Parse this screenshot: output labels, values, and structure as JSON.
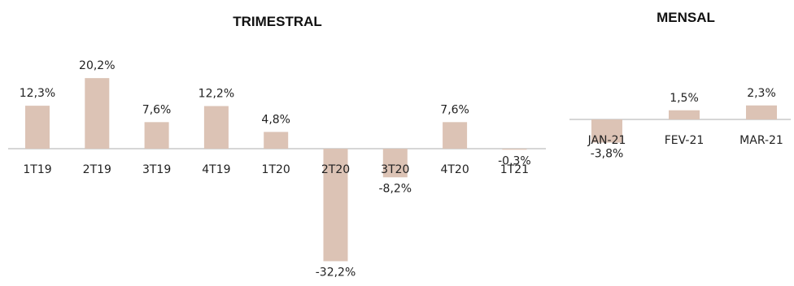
{
  "chart_data": [
    {
      "type": "bar",
      "title": "TRIMESTRAL",
      "categories": [
        "1T19",
        "2T19",
        "3T19",
        "4T19",
        "1T20",
        "2T20",
        "3T20",
        "4T20",
        "1T21"
      ],
      "values": [
        12.3,
        20.2,
        7.6,
        12.2,
        4.8,
        -32.2,
        -8.2,
        7.6,
        -0.3
      ],
      "data_labels": [
        "12,3%",
        "20,2%",
        "7,6%",
        "12,2%",
        "4,8%",
        "-32,2%",
        "-8,2%",
        "7,6%",
        "-0,3%"
      ],
      "xlabel": "",
      "ylabel": "",
      "grid": false,
      "bar_color": "#dcc3b5",
      "axis_color": "#c8c8c8"
    },
    {
      "type": "bar",
      "title": "MENSAL",
      "categories": [
        "JAN-21",
        "FEV-21",
        "MAR-21"
      ],
      "values": [
        -3.8,
        1.5,
        2.3
      ],
      "data_labels": [
        "-3,8%",
        "1,5%",
        "2,3%"
      ],
      "xlabel": "",
      "ylabel": "",
      "grid": false,
      "bar_color": "#dcc3b5",
      "axis_color": "#c8c8c8"
    }
  ]
}
